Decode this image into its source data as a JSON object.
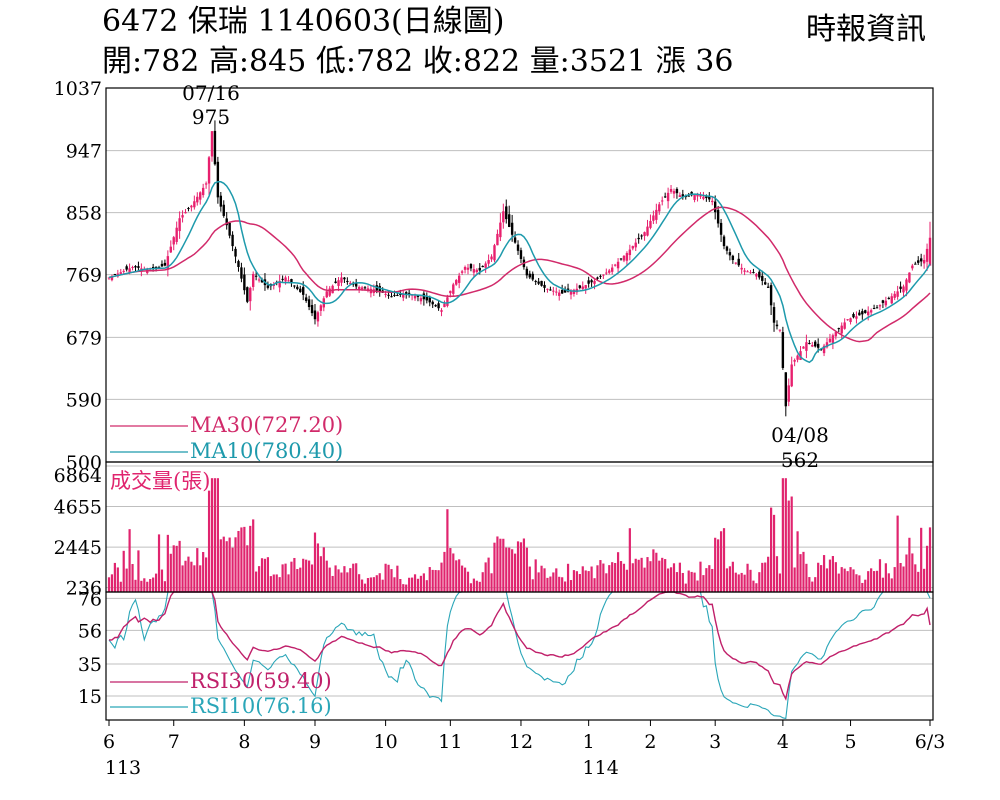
{
  "header": {
    "code": "6472",
    "name": "保瑞",
    "date_label": "1140603(日線圖)",
    "open_label": "開:782",
    "high_label": "高:845",
    "low_label": "低:782",
    "close_label": "收:822",
    "volume_label": "量:3521",
    "change_label": "漲 36",
    "source": "時報資訊"
  },
  "colors": {
    "up": "#e8206e",
    "down": "#000000",
    "ma30": "#d12a6a",
    "ma10": "#1e9aac",
    "rsi30": "#c0206a",
    "rsi10": "#2aa6b8",
    "volume": "#e0246e",
    "grid": "#bfbfbf"
  },
  "chart_data": [
    {
      "type": "candlestick",
      "yticks": [
        "1037",
        "947",
        "858",
        "769",
        "679",
        "590",
        "500"
      ],
      "ylim": [
        500,
        1037
      ],
      "annotations": [
        {
          "date": "07/16",
          "value": "975"
        },
        {
          "date": "04/08",
          "value": "562"
        }
      ],
      "legend": [
        {
          "label": "MA30(727.20)"
        },
        {
          "label": "MA10(780.40)"
        }
      ],
      "last_bar": {
        "open": 782,
        "high": 845,
        "low": 782,
        "close": 822
      },
      "anchors": [
        [
          0,
          765
        ],
        [
          8,
          780
        ],
        [
          14,
          776
        ],
        [
          19,
          782
        ],
        [
          24,
          850
        ],
        [
          28,
          868
        ],
        [
          33,
          900
        ],
        [
          35,
          975
        ],
        [
          37,
          880
        ],
        [
          40,
          840
        ],
        [
          44,
          780
        ],
        [
          47,
          730
        ],
        [
          49,
          770
        ],
        [
          54,
          750
        ],
        [
          60,
          765
        ],
        [
          66,
          740
        ],
        [
          70,
          705
        ],
        [
          74,
          745
        ],
        [
          79,
          765
        ],
        [
          84,
          752
        ],
        [
          90,
          748
        ],
        [
          96,
          738
        ],
        [
          102,
          742
        ],
        [
          108,
          732
        ],
        [
          113,
          718
        ],
        [
          117,
          755
        ],
        [
          121,
          780
        ],
        [
          126,
          775
        ],
        [
          130,
          795
        ],
        [
          134,
          860
        ],
        [
          138,
          815
        ],
        [
          142,
          768
        ],
        [
          148,
          750
        ],
        [
          154,
          742
        ],
        [
          160,
          750
        ],
        [
          165,
          760
        ],
        [
          170,
          775
        ],
        [
          176,
          800
        ],
        [
          182,
          830
        ],
        [
          187,
          870
        ],
        [
          191,
          892
        ],
        [
          195,
          880
        ],
        [
          200,
          885
        ],
        [
          205,
          875
        ],
        [
          209,
          810
        ],
        [
          212,
          790
        ],
        [
          216,
          775
        ],
        [
          220,
          770
        ],
        [
          224,
          750
        ],
        [
          226,
          700
        ],
        [
          228,
          690
        ],
        [
          230,
          580
        ],
        [
          232,
          640
        ],
        [
          237,
          672
        ],
        [
          242,
          662
        ],
        [
          246,
          682
        ],
        [
          251,
          705
        ],
        [
          256,
          712
        ],
        [
          261,
          722
        ],
        [
          266,
          738
        ],
        [
          270,
          752
        ],
        [
          273,
          782
        ],
        [
          277,
          790
        ],
        [
          279,
          822
        ]
      ],
      "n_bars": 280
    },
    {
      "type": "bar",
      "title": "成交量(張)",
      "yticks": [
        "6864",
        "4655",
        "2445",
        "236"
      ],
      "ylim": [
        0,
        6864
      ],
      "last_value": 3521
    },
    {
      "type": "line",
      "yticks": [
        "76",
        "56",
        "35",
        "15"
      ],
      "ylim": [
        0,
        80
      ],
      "legend": [
        {
          "label": "RSI30(59.40)"
        },
        {
          "label": "RSI10(76.16)"
        }
      ],
      "last_values": {
        "rsi30": 59.4,
        "rsi10": 76.16
      }
    }
  ],
  "xaxis": {
    "ticks": [
      {
        "label": "6",
        "bar": 0
      },
      {
        "label": "7",
        "bar": 22
      },
      {
        "label": "8",
        "bar": 46
      },
      {
        "label": "9",
        "bar": 70
      },
      {
        "label": "10",
        "bar": 94
      },
      {
        "label": "11",
        "bar": 116
      },
      {
        "label": "12",
        "bar": 140
      },
      {
        "label": "1",
        "bar": 163
      },
      {
        "label": "2",
        "bar": 184
      },
      {
        "label": "3",
        "bar": 206
      },
      {
        "label": "4",
        "bar": 229
      },
      {
        "label": "5",
        "bar": 252
      },
      {
        "label": "6/3",
        "bar": 279
      }
    ],
    "year_labels": [
      {
        "label": "113",
        "bar": 0
      },
      {
        "label": "114",
        "bar": 163
      }
    ]
  }
}
